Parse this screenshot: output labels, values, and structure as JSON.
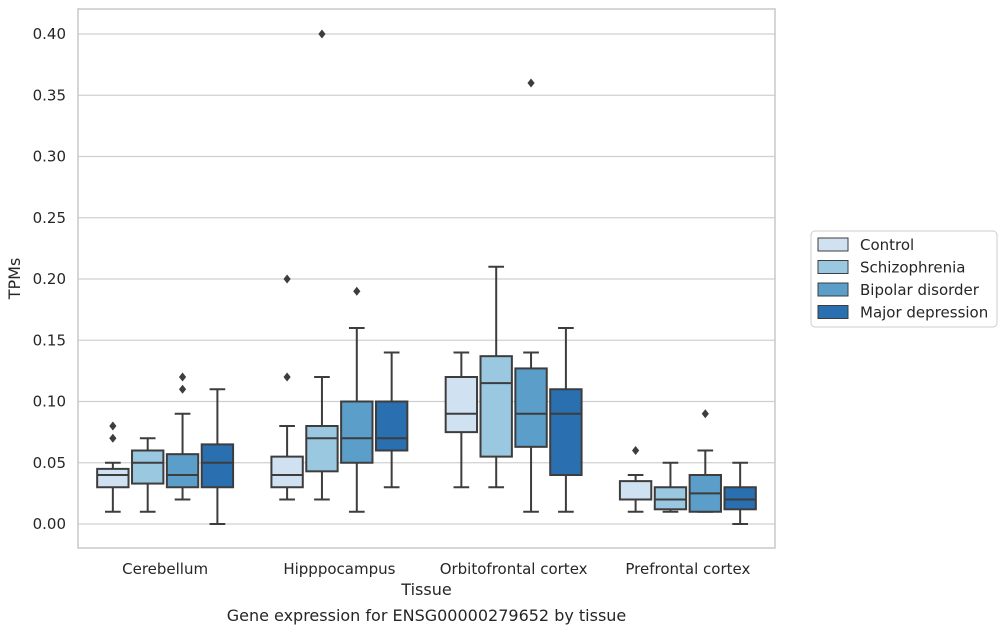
{
  "chart_data": {
    "type": "box",
    "xlabel": "Tissue",
    "ylabel": "TPMs",
    "caption": "Gene expression for ENSG00000279652 by tissue",
    "ylim": [
      -0.02,
      0.42
    ],
    "yticks": [
      "0.00",
      "0.05",
      "0.10",
      "0.15",
      "0.20",
      "0.25",
      "0.30",
      "0.35",
      "0.40"
    ],
    "grid": "horizontal",
    "legend_position": "right",
    "categories": [
      "Cerebellum",
      "Hipppocampus",
      "Orbitofrontal cortex",
      "Prefrontal cortex"
    ],
    "series": [
      {
        "name": "Control",
        "color": "#d0e1f2",
        "boxes": [
          {
            "whisker_low": 0.01,
            "q1": 0.03,
            "median": 0.04,
            "q3": 0.045,
            "whisker_high": 0.05,
            "outliers": [
              0.07,
              0.08
            ]
          },
          {
            "whisker_low": 0.02,
            "q1": 0.03,
            "median": 0.04,
            "q3": 0.055,
            "whisker_high": 0.08,
            "outliers": [
              0.12,
              0.2
            ]
          },
          {
            "whisker_low": 0.03,
            "q1": 0.075,
            "median": 0.09,
            "q3": 0.12,
            "whisker_high": 0.14,
            "outliers": []
          },
          {
            "whisker_low": 0.01,
            "q1": 0.02,
            "median": 0.02,
            "q3": 0.035,
            "whisker_high": 0.04,
            "outliers": [
              0.06
            ]
          }
        ]
      },
      {
        "name": "Schizophrenia",
        "color": "#9ac8e0",
        "boxes": [
          {
            "whisker_low": 0.01,
            "q1": 0.033,
            "median": 0.05,
            "q3": 0.06,
            "whisker_high": 0.07,
            "outliers": []
          },
          {
            "whisker_low": 0.02,
            "q1": 0.043,
            "median": 0.07,
            "q3": 0.08,
            "whisker_high": 0.12,
            "outliers": [
              0.4
            ]
          },
          {
            "whisker_low": 0.03,
            "q1": 0.055,
            "median": 0.115,
            "q3": 0.137,
            "whisker_high": 0.21,
            "outliers": []
          },
          {
            "whisker_low": 0.01,
            "q1": 0.012,
            "median": 0.02,
            "q3": 0.03,
            "whisker_high": 0.05,
            "outliers": []
          }
        ]
      },
      {
        "name": "Bipolar disorder",
        "color": "#5a9ec9",
        "boxes": [
          {
            "whisker_low": 0.02,
            "q1": 0.03,
            "median": 0.04,
            "q3": 0.057,
            "whisker_high": 0.09,
            "outliers": [
              0.11,
              0.12
            ]
          },
          {
            "whisker_low": 0.01,
            "q1": 0.05,
            "median": 0.07,
            "q3": 0.1,
            "whisker_high": 0.16,
            "outliers": [
              0.19
            ]
          },
          {
            "whisker_low": 0.01,
            "q1": 0.063,
            "median": 0.09,
            "q3": 0.127,
            "whisker_high": 0.14,
            "outliers": [
              0.36
            ]
          },
          {
            "whisker_low": 0.01,
            "q1": 0.01,
            "median": 0.025,
            "q3": 0.04,
            "whisker_high": 0.06,
            "outliers": [
              0.09
            ]
          }
        ]
      },
      {
        "name": "Major depression",
        "color": "#2a6faf",
        "boxes": [
          {
            "whisker_low": 0.0,
            "q1": 0.03,
            "median": 0.05,
            "q3": 0.065,
            "whisker_high": 0.11,
            "outliers": []
          },
          {
            "whisker_low": 0.03,
            "q1": 0.06,
            "median": 0.07,
            "q3": 0.1,
            "whisker_high": 0.14,
            "outliers": []
          },
          {
            "whisker_low": 0.01,
            "q1": 0.04,
            "median": 0.09,
            "q3": 0.11,
            "whisker_high": 0.16,
            "outliers": []
          },
          {
            "whisker_low": 0.0,
            "q1": 0.012,
            "median": 0.02,
            "q3": 0.03,
            "whisker_high": 0.05,
            "outliers": []
          }
        ]
      }
    ]
  },
  "colors": {
    "grid": "#d0d0d0",
    "frame": "#c8c8c8",
    "box_edge": "#3d3d3d"
  }
}
